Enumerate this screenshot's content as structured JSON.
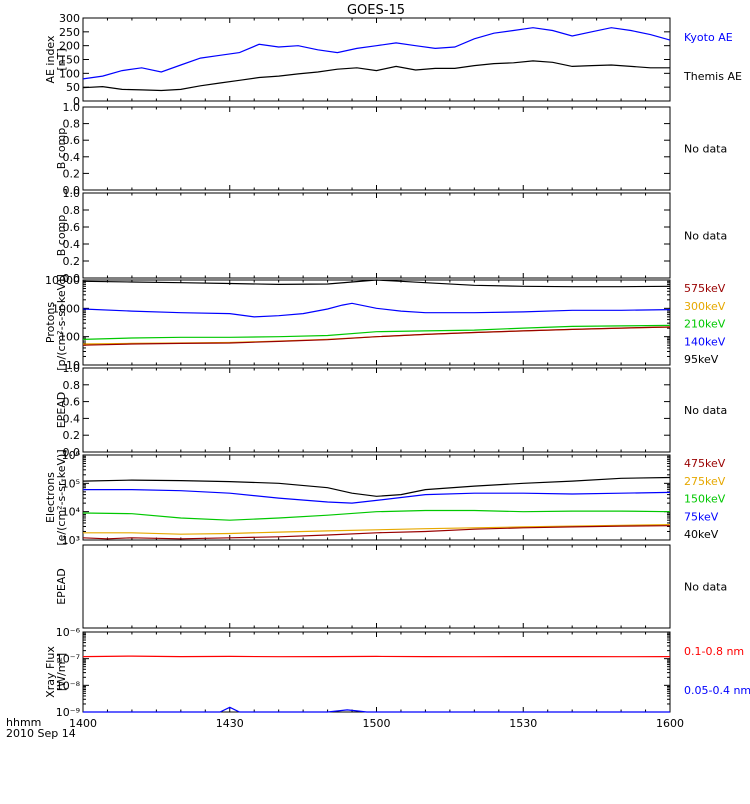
{
  "title": "GOES-15",
  "xaxis": {
    "ticks": [
      "1400",
      "1430",
      "1500",
      "1530",
      "1600"
    ],
    "tick_values": [
      0,
      30,
      60,
      90,
      120
    ],
    "corner_label": "hhmm",
    "date_label": "2010 Sep 14"
  },
  "panels": [
    {
      "id": "ae",
      "ylabel": [
        "AE index",
        "[nT]"
      ],
      "ylim": [
        0,
        300
      ],
      "scale": "linear",
      "yticks": [
        {
          "v": 0,
          "t": "0"
        },
        {
          "v": 50,
          "t": "50"
        },
        {
          "v": 100,
          "t": "100"
        },
        {
          "v": 150,
          "t": "150"
        },
        {
          "v": 200,
          "t": "200"
        },
        {
          "v": 250,
          "t": "250"
        },
        {
          "v": 300,
          "t": "300"
        }
      ],
      "legend": [
        {
          "text": "Kyoto AE",
          "color": "#0000ff"
        },
        {
          "text": "Themis AE",
          "color": "#000000"
        }
      ],
      "series": [
        {
          "name": "Kyoto AE",
          "color": "#0000ff",
          "x": [
            0,
            4,
            8,
            12,
            16,
            20,
            24,
            28,
            32,
            36,
            40,
            44,
            48,
            52,
            56,
            60,
            64,
            68,
            72,
            76,
            80,
            84,
            88,
            92,
            96,
            100,
            104,
            108,
            112,
            116,
            120
          ],
          "y": [
            80,
            90,
            110,
            120,
            105,
            130,
            155,
            165,
            175,
            205,
            195,
            200,
            185,
            175,
            190,
            200,
            210,
            200,
            190,
            195,
            225,
            245,
            255,
            265,
            255,
            235,
            250,
            265,
            255,
            240,
            220
          ]
        },
        {
          "name": "Themis AE",
          "color": "#000000",
          "x": [
            0,
            4,
            8,
            12,
            16,
            20,
            24,
            28,
            32,
            36,
            40,
            44,
            48,
            52,
            56,
            60,
            64,
            68,
            72,
            76,
            80,
            84,
            88,
            92,
            96,
            100,
            104,
            108,
            112,
            116,
            120
          ],
          "y": [
            48,
            52,
            42,
            40,
            38,
            42,
            55,
            65,
            75,
            85,
            90,
            98,
            105,
            115,
            120,
            110,
            125,
            112,
            118,
            118,
            128,
            135,
            138,
            145,
            140,
            125,
            128,
            130,
            125,
            120,
            120
          ]
        }
      ]
    },
    {
      "id": "b1",
      "ylabel": [
        "B comp"
      ],
      "ylim": [
        0,
        1
      ],
      "scale": "linear",
      "yticks": [
        {
          "v": 0,
          "t": "0.0"
        },
        {
          "v": 0.2,
          "t": "0.2"
        },
        {
          "v": 0.4,
          "t": "0.4"
        },
        {
          "v": 0.6,
          "t": "0.6"
        },
        {
          "v": 0.8,
          "t": "0.8"
        },
        {
          "v": 1.0,
          "t": "1.0"
        }
      ],
      "nodata": "No data",
      "series": []
    },
    {
      "id": "b2",
      "ylabel": [
        "B comp"
      ],
      "ylim": [
        0,
        1
      ],
      "scale": "linear",
      "yticks": [
        {
          "v": 0,
          "t": "0.0"
        },
        {
          "v": 0.2,
          "t": "0.2"
        },
        {
          "v": 0.4,
          "t": "0.4"
        },
        {
          "v": 0.6,
          "t": "0.6"
        },
        {
          "v": 0.8,
          "t": "0.8"
        },
        {
          "v": 1.0,
          "t": "1.0"
        }
      ],
      "nodata": "No data",
      "series": []
    },
    {
      "id": "protons",
      "ylabel": [
        "Protons",
        "[p/(cm²-s-sr-keV)]"
      ],
      "ylim": [
        10,
        10000
      ],
      "scale": "log",
      "yticks": [
        {
          "v": 10,
          "t": "10"
        },
        {
          "v": 100,
          "t": "100"
        },
        {
          "v": 1000,
          "t": "1000"
        },
        {
          "v": 10000,
          "t": "10000"
        }
      ],
      "legend": [
        {
          "text": "575keV",
          "color": "#990000"
        },
        {
          "text": "300keV",
          "color": "#e6a800"
        },
        {
          "text": "210keV",
          "color": "#00c800"
        },
        {
          "text": "140keV",
          "color": "#0000ff"
        },
        {
          "text": "95keV",
          "color": "#000000"
        }
      ],
      "series": [
        {
          "name": "95keV",
          "color": "#000000",
          "x": [
            0,
            10,
            20,
            30,
            40,
            50,
            55,
            60,
            65,
            70,
            80,
            90,
            100,
            110,
            120
          ],
          "y": [
            9000,
            8500,
            8000,
            7500,
            7000,
            7200,
            8500,
            10000,
            9000,
            8000,
            6500,
            6000,
            5800,
            5800,
            6000
          ]
        },
        {
          "name": "140keV",
          "color": "#0000ff",
          "x": [
            0,
            10,
            20,
            30,
            35,
            40,
            45,
            50,
            53,
            55,
            60,
            65,
            70,
            80,
            90,
            100,
            110,
            120
          ],
          "y": [
            950,
            800,
            700,
            650,
            500,
            550,
            650,
            950,
            1300,
            1500,
            1000,
            800,
            700,
            700,
            750,
            850,
            850,
            900
          ]
        },
        {
          "name": "210keV",
          "color": "#00c800",
          "x": [
            0,
            10,
            20,
            30,
            40,
            50,
            60,
            70,
            80,
            90,
            100,
            110,
            120
          ],
          "y": [
            80,
            90,
            95,
            95,
            100,
            110,
            150,
            160,
            170,
            200,
            230,
            240,
            250
          ]
        },
        {
          "name": "300keV",
          "color": "#e6a800",
          "x": [
            0,
            10,
            20,
            30,
            40,
            50,
            60,
            70,
            80,
            90,
            100,
            110,
            120
          ],
          "y": [
            55,
            58,
            60,
            62,
            70,
            80,
            100,
            120,
            140,
            160,
            180,
            200,
            220
          ]
        },
        {
          "name": "575keV",
          "color": "#990000",
          "x": [
            0,
            10,
            20,
            30,
            40,
            50,
            60,
            70,
            80,
            90,
            100,
            110,
            120
          ],
          "y": [
            50,
            55,
            58,
            60,
            68,
            78,
            100,
            120,
            140,
            160,
            180,
            200,
            220
          ]
        }
      ]
    },
    {
      "id": "epead1",
      "ylabel": [
        "EPEAD"
      ],
      "ylim": [
        0,
        1
      ],
      "scale": "linear",
      "yticks": [
        {
          "v": 0,
          "t": "0.0"
        },
        {
          "v": 0.2,
          "t": "0.2"
        },
        {
          "v": 0.4,
          "t": "0.4"
        },
        {
          "v": 0.6,
          "t": "0.6"
        },
        {
          "v": 0.8,
          "t": "0.8"
        },
        {
          "v": 1.0,
          "t": "1.0"
        }
      ],
      "nodata": "No data",
      "series": []
    },
    {
      "id": "electrons",
      "ylabel": [
        "Electrons",
        "[e/(cm²-s-sr-keV)]"
      ],
      "ylim": [
        1000,
        1000000
      ],
      "scale": "log",
      "yticks": [
        {
          "v": 1000,
          "t": "10³"
        },
        {
          "v": 10000,
          "t": "10⁴"
        },
        {
          "v": 100000,
          "t": "10⁵"
        },
        {
          "v": 1000000,
          "t": "10⁶"
        }
      ],
      "legend": [
        {
          "text": "475keV",
          "color": "#990000"
        },
        {
          "text": "275keV",
          "color": "#e6a800"
        },
        {
          "text": "150keV",
          "color": "#00c800"
        },
        {
          "text": "75keV",
          "color": "#0000ff"
        },
        {
          "text": "40keV",
          "color": "#000000"
        }
      ],
      "series": [
        {
          "name": "40keV",
          "color": "#000000",
          "x": [
            0,
            10,
            20,
            30,
            40,
            50,
            55,
            60,
            65,
            70,
            80,
            90,
            100,
            110,
            120
          ],
          "y": [
            120000,
            130000,
            125000,
            115000,
            100000,
            70000,
            45000,
            35000,
            40000,
            60000,
            80000,
            100000,
            120000,
            150000,
            160000
          ]
        },
        {
          "name": "75keV",
          "color": "#0000ff",
          "x": [
            0,
            10,
            20,
            30,
            40,
            50,
            55,
            60,
            70,
            80,
            90,
            100,
            110,
            120
          ],
          "y": [
            60000,
            60000,
            55000,
            45000,
            30000,
            22000,
            20000,
            25000,
            40000,
            45000,
            45000,
            42000,
            45000,
            48000
          ]
        },
        {
          "name": "150keV",
          "color": "#00c800",
          "x": [
            0,
            10,
            20,
            30,
            40,
            50,
            60,
            70,
            80,
            90,
            100,
            110,
            120
          ],
          "y": [
            9000,
            8500,
            6000,
            5000,
            6000,
            7500,
            10000,
            11000,
            11000,
            10000,
            10500,
            10500,
            10000
          ]
        },
        {
          "name": "275keV",
          "color": "#e6a800",
          "x": [
            0,
            10,
            20,
            30,
            40,
            50,
            60,
            70,
            80,
            90,
            100,
            110,
            120
          ],
          "y": [
            1800,
            1800,
            1600,
            1700,
            1900,
            2100,
            2300,
            2500,
            2700,
            2900,
            3100,
            3300,
            3500
          ]
        },
        {
          "name": "475keV",
          "color": "#990000",
          "x": [
            0,
            5,
            10,
            20,
            30,
            40,
            50,
            60,
            70,
            80,
            90,
            100,
            110,
            120
          ],
          "y": [
            1200,
            1100,
            1200,
            1100,
            1200,
            1300,
            1500,
            1800,
            2000,
            2400,
            2700,
            2900,
            3100,
            3200
          ]
        }
      ]
    },
    {
      "id": "epead2",
      "ylabel": [
        "EPEAD"
      ],
      "ylim": [
        0,
        1
      ],
      "scale": "linear",
      "yticks": [],
      "nodata": "No data",
      "series": []
    },
    {
      "id": "xray",
      "ylabel": [
        "Xray Flux",
        "[W/m²]"
      ],
      "ylim": [
        1e-09,
        1e-06
      ],
      "scale": "log",
      "yticks": [
        {
          "v": 1e-09,
          "t": "10⁻⁹"
        },
        {
          "v": 1e-08,
          "t": "10⁻⁸"
        },
        {
          "v": 1e-07,
          "t": "10⁻⁷"
        },
        {
          "v": 1e-06,
          "t": "10⁻⁶"
        }
      ],
      "legend": [
        {
          "text": "0.1-0.8 nm",
          "color": "#ff0000"
        },
        {
          "text": "0.05-0.4 nm",
          "color": "#0000ff"
        }
      ],
      "series": [
        {
          "name": "0.1-0.8 nm",
          "color": "#ff0000",
          "x": [
            0,
            10,
            20,
            30,
            40,
            50,
            60,
            70,
            80,
            90,
            100,
            110,
            120
          ],
          "y": [
            1.2e-07,
            1.25e-07,
            1.2e-07,
            1.22e-07,
            1.18e-07,
            1.2e-07,
            1.22e-07,
            1.2e-07,
            1.18e-07,
            1.2e-07,
            1.2e-07,
            1.18e-07,
            1.2e-07
          ]
        },
        {
          "name": "0.05-0.4 nm",
          "color": "#0000ff",
          "x": [
            0,
            10,
            28,
            30,
            32,
            40,
            50,
            54,
            56,
            58,
            70,
            90,
            120
          ],
          "y": [
            1e-09,
            1e-09,
            1e-09,
            1.5e-09,
            1e-09,
            1e-09,
            1e-09,
            1.2e-09,
            1.1e-09,
            1e-09,
            1e-09,
            1e-09,
            1e-09
          ]
        }
      ]
    }
  ]
}
